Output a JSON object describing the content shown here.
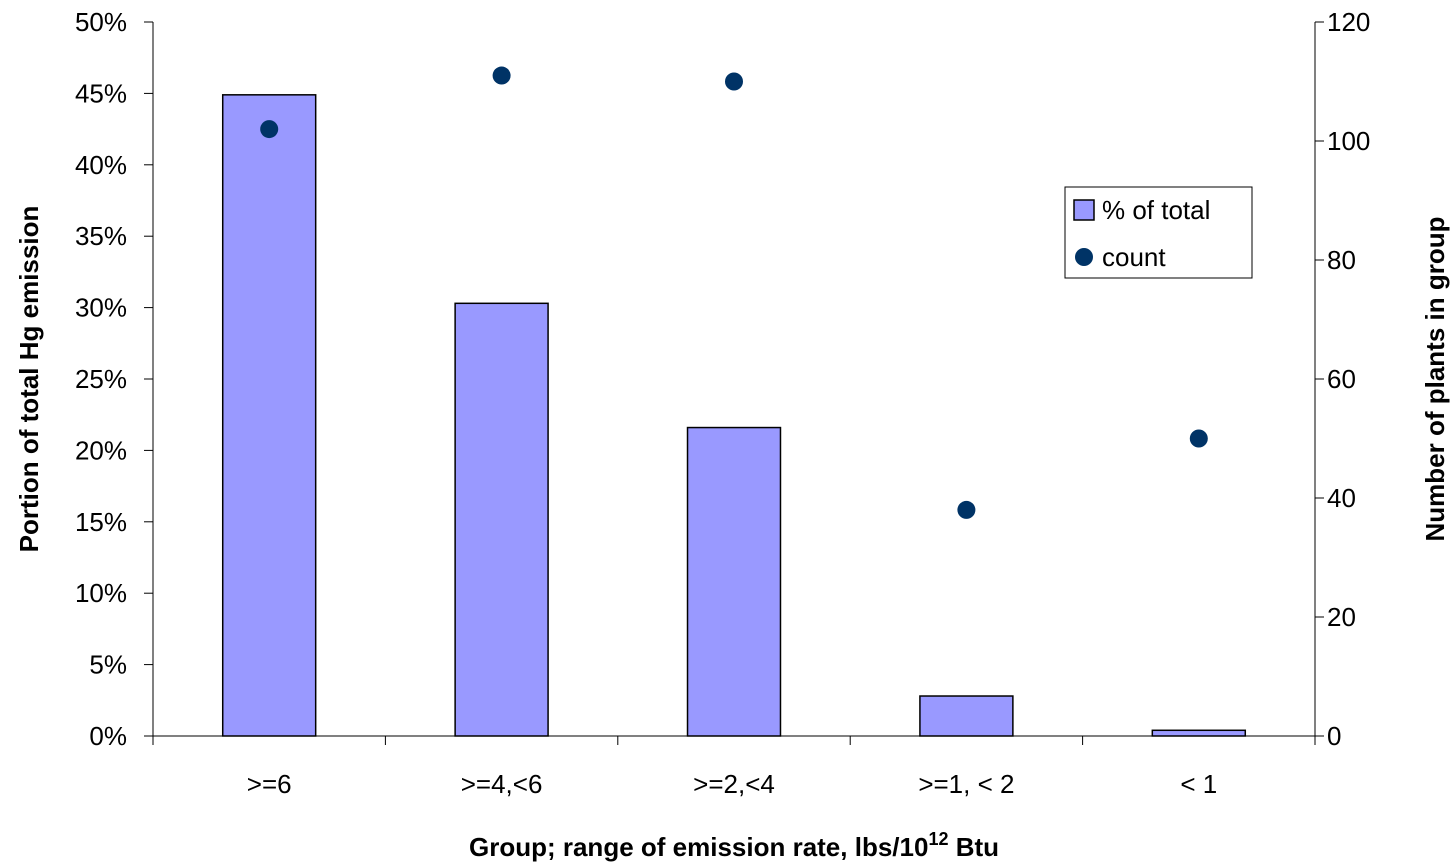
{
  "chart_data": {
    "type": "bar",
    "categories": [
      ">=6",
      ">=4,<6",
      ">=2,<4",
      ">=1, < 2",
      "< 1"
    ],
    "series": [
      {
        "name": "% of total",
        "type": "bar",
        "axis": "left",
        "values": [
          0.449,
          0.303,
          0.216,
          0.028,
          0.004
        ],
        "color": "#9999ff"
      },
      {
        "name": "count",
        "type": "scatter",
        "axis": "right",
        "values": [
          102,
          111,
          110,
          38,
          50
        ],
        "color": "#003366"
      }
    ],
    "y_left": {
      "label": "Portion of total Hg emission",
      "ylim": [
        0,
        0.5
      ],
      "ticks": [
        0,
        0.05,
        0.1,
        0.15,
        0.2,
        0.25,
        0.3,
        0.35,
        0.4,
        0.45,
        0.5
      ],
      "tick_labels": [
        "0%",
        "5%",
        "10%",
        "15%",
        "20%",
        "25%",
        "30%",
        "35%",
        "40%",
        "45%",
        "50%"
      ]
    },
    "y_right": {
      "label": "Number of plants in group",
      "ylim": [
        0,
        120
      ],
      "ticks": [
        0,
        20,
        40,
        60,
        80,
        100,
        120
      ],
      "tick_labels": [
        "0",
        "20",
        "40",
        "60",
        "80",
        "100",
        "120"
      ]
    },
    "x_axis": {
      "label_main": "Group; range of emission rate, lbs/10",
      "label_superscript": "12",
      "label_suffix": " Btu"
    },
    "legend": {
      "placement": "right"
    },
    "grid": false
  }
}
